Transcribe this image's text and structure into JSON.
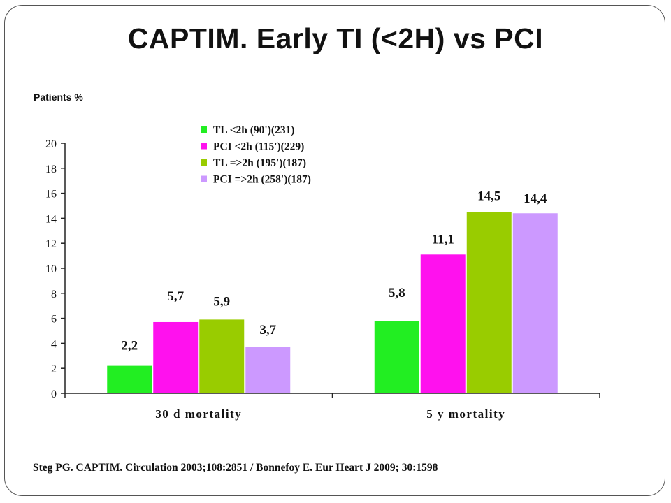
{
  "slide": {
    "title": "CAPTIM. Early TI (<2H) vs PCI",
    "footer": "Steg PG. CAPTIM. Circulation 2003;108:2851 / Bonnefoy E. Eur Heart J 2009; 30:1598"
  },
  "chart_data": {
    "type": "bar",
    "title": "",
    "xlabel": "",
    "ylabel": "Patients %",
    "ylim": [
      0,
      20
    ],
    "yticks": [
      0,
      2,
      4,
      6,
      8,
      10,
      12,
      14,
      16,
      18,
      20
    ],
    "grid": false,
    "legend_position": "top",
    "categories": [
      "30 d mortality",
      "5 y mortality"
    ],
    "series": [
      {
        "name": "TL <2h (90')(231)",
        "color": "#22ee22",
        "values": [
          2.2,
          5.8
        ],
        "labels": [
          "2,2",
          "5,8"
        ]
      },
      {
        "name": "PCI <2h (115')(229)",
        "color": "#ff11ee",
        "values": [
          5.7,
          11.1
        ],
        "labels": [
          "5,7",
          "11,1"
        ]
      },
      {
        "name": "TL =>2h (195')(187)",
        "color": "#99cc00",
        "values": [
          5.9,
          14.5
        ],
        "labels": [
          "5,9",
          "14,5"
        ]
      },
      {
        "name": "PCI =>2h (258')(187)",
        "color": "#cc99ff",
        "values": [
          3.7,
          14.4
        ],
        "labels": [
          "3,7",
          "14,4"
        ]
      }
    ]
  }
}
